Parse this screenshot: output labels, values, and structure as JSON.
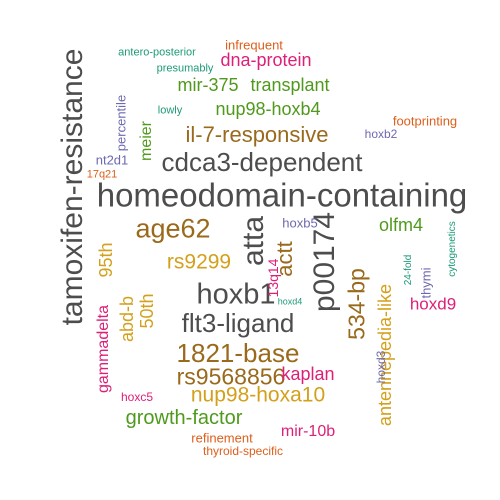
{
  "colors": {
    "grey": "#4d4d4d",
    "green": "#4f9a1d",
    "ochre": "#d4a01c",
    "brown": "#9a6a1c",
    "magenta": "#dd1f78",
    "orange": "#dd5f1c",
    "purple": "#6d68b0",
    "teal": "#1d9a78"
  },
  "words": [
    {
      "text": "homeodomain-containing",
      "color": "grey",
      "vertical": false
    },
    {
      "text": "tamoxifen-resistance",
      "color": "grey",
      "vertical": true
    },
    {
      "text": "cdca3-dependent",
      "color": "grey",
      "vertical": false
    },
    {
      "text": "atta",
      "color": "grey",
      "vertical": true
    },
    {
      "text": "p00174",
      "color": "grey",
      "vertical": true
    },
    {
      "text": "hoxb1",
      "color": "grey",
      "vertical": false
    },
    {
      "text": "flt3-ligand",
      "color": "grey",
      "vertical": false
    },
    {
      "text": "age62",
      "color": "brown",
      "vertical": false
    },
    {
      "text": "1821-base",
      "color": "brown",
      "vertical": false
    },
    {
      "text": "rs9568856",
      "color": "brown",
      "vertical": false
    },
    {
      "text": "il-7-responsive",
      "color": "brown",
      "vertical": false
    },
    {
      "text": "534-bp",
      "color": "brown",
      "vertical": true
    },
    {
      "text": "actt",
      "color": "brown",
      "vertical": true
    },
    {
      "text": "rs9299",
      "color": "ochre",
      "vertical": false
    },
    {
      "text": "95th",
      "color": "ochre",
      "vertical": true
    },
    {
      "text": "50th",
      "color": "ochre",
      "vertical": true
    },
    {
      "text": "abd-b",
      "color": "ochre",
      "vertical": true
    },
    {
      "text": "nup98-hoxa10",
      "color": "ochre",
      "vertical": false
    },
    {
      "text": "antennepedia-like",
      "color": "ochre",
      "vertical": true
    },
    {
      "text": "nup98-hoxb4",
      "color": "green",
      "vertical": false
    },
    {
      "text": "mir-375",
      "color": "green",
      "vertical": false
    },
    {
      "text": "transplant",
      "color": "green",
      "vertical": false
    },
    {
      "text": "meier",
      "color": "green",
      "vertical": true
    },
    {
      "text": "olfm4",
      "color": "green",
      "vertical": false
    },
    {
      "text": "growth-factor",
      "color": "green",
      "vertical": false
    },
    {
      "text": "dna-protein",
      "color": "magenta",
      "vertical": false
    },
    {
      "text": "kaplan",
      "color": "magenta",
      "vertical": false
    },
    {
      "text": "mir-10b",
      "color": "magenta",
      "vertical": false
    },
    {
      "text": "gammadelta",
      "color": "magenta",
      "vertical": true
    },
    {
      "text": "hoxd9",
      "color": "magenta",
      "vertical": false
    },
    {
      "text": "13q14",
      "color": "magenta",
      "vertical": true
    },
    {
      "text": "infrequent",
      "color": "orange",
      "vertical": false
    },
    {
      "text": "footprinting",
      "color": "orange",
      "vertical": false
    },
    {
      "text": "17q21",
      "color": "orange",
      "vertical": false
    },
    {
      "text": "refinement",
      "color": "orange",
      "vertical": false
    },
    {
      "text": "thyroid-specific",
      "color": "orange",
      "vertical": false
    },
    {
      "text": "percentile",
      "color": "purple",
      "vertical": true
    },
    {
      "text": "nt2d1",
      "color": "purple",
      "vertical": false
    },
    {
      "text": "hoxb2",
      "color": "purple",
      "vertical": false
    },
    {
      "text": "hoxb5",
      "color": "purple",
      "vertical": false
    },
    {
      "text": "thymi",
      "color": "purple",
      "vertical": true
    },
    {
      "text": "hoxd3",
      "color": "purple",
      "vertical": true
    },
    {
      "text": "hoxc5",
      "color": "magenta",
      "vertical": false
    },
    {
      "text": "antero-posterior",
      "color": "teal",
      "vertical": false
    },
    {
      "text": "presumably",
      "color": "teal",
      "vertical": false
    },
    {
      "text": "lowly",
      "color": "teal",
      "vertical": false
    },
    {
      "text": "24-fold",
      "color": "teal",
      "vertical": true
    },
    {
      "text": "cytogenetics",
      "color": "teal",
      "vertical": true
    },
    {
      "text": "hoxd4",
      "color": "teal",
      "vertical": false
    }
  ]
}
